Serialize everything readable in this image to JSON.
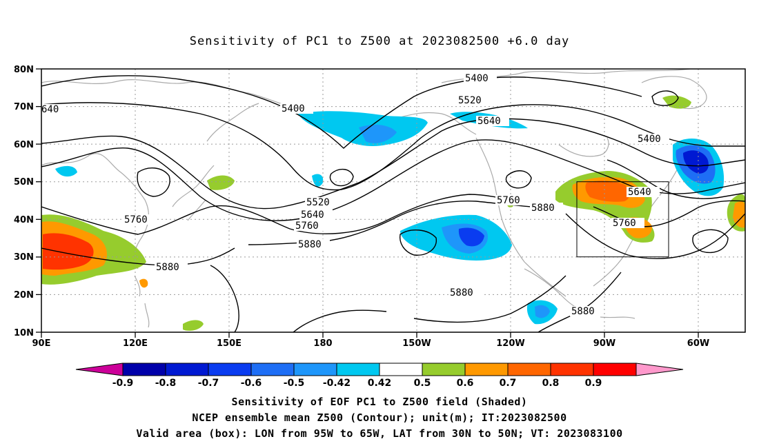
{
  "title": "Sensitivity of PC1 to Z500 at 2023082500 +6.0 day",
  "lat_labels": [
    "80N",
    "70N",
    "60N",
    "50N",
    "40N",
    "30N",
    "20N",
    "10N"
  ],
  "lon_labels": [
    "90E",
    "120E",
    "150E",
    "180",
    "150W",
    "120W",
    "90W",
    "60W"
  ],
  "colorbar": {
    "labels": [
      "-0.9",
      "-0.8",
      "-0.7",
      "-0.6",
      "-0.5",
      "-0.42",
      "0.42",
      "0.5",
      "0.6",
      "0.7",
      "0.8",
      "0.9"
    ],
    "colors": [
      "#cc0099",
      "#0000aa",
      "#0019d2",
      "#0a3cf0",
      "#1e6ef5",
      "#1e96fa",
      "#00c8f0",
      "#ffffff",
      "#96cc2d",
      "#ff9900",
      "#ff6600",
      "#ff3300",
      "#ff0000",
      "#ff99cc"
    ]
  },
  "contour_labels": {
    "c1": "5400",
    "c2": "5520",
    "c3": "5640",
    "c4": "5400",
    "c5": "5400",
    "c6": "640",
    "c7": "5520",
    "c8": "5640",
    "c9": "5760",
    "c10": "5880",
    "c11": "5760",
    "c12": "5880",
    "c13": "5760",
    "c14": "5880",
    "c15": "5640",
    "c16": "5760",
    "c17": "5880",
    "c18": "5880"
  },
  "captions": {
    "line1": "Sensitivity of EOF PC1 to Z500 field (Shaded)",
    "line2": "NCEP ensemble mean Z500 (Contour); unit(m); IT:2023082500",
    "line3": "Valid area (box): LON from 95W to 65W, LAT from 30N to 50N; VT: 2023083100"
  }
}
